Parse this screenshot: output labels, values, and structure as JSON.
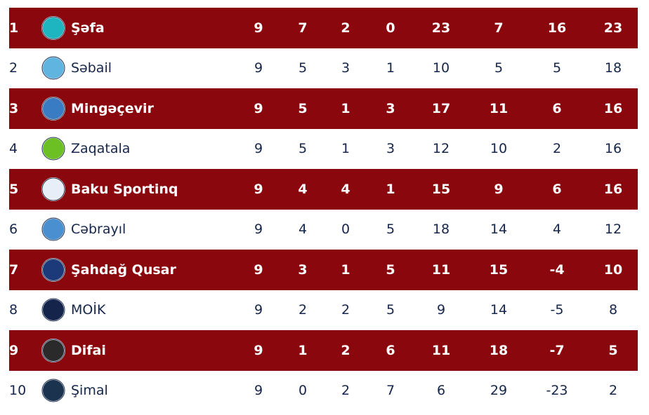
{
  "colors": {
    "highlight": "#8a080d",
    "text": "#15264a"
  },
  "rows": [
    {
      "rank": "1",
      "team": "Şəfa",
      "logo": "sefa-fk-logo",
      "logo_color": "#1fb5c0",
      "p": "9",
      "w": "7",
      "d": "2",
      "l": "0",
      "gf": "23",
      "ga": "7",
      "gd": "16",
      "pts": "23"
    },
    {
      "rank": "2",
      "team": "Səbail",
      "logo": "sebail-logo",
      "logo_color": "#5fb4e0",
      "p": "9",
      "w": "5",
      "d": "3",
      "l": "1",
      "gf": "10",
      "ga": "5",
      "gd": "5",
      "pts": "18"
    },
    {
      "rank": "3",
      "team": "Mingəçevir",
      "logo": "mingecevir-logo",
      "logo_color": "#3a7cc4",
      "p": "9",
      "w": "5",
      "d": "1",
      "l": "3",
      "gf": "17",
      "ga": "11",
      "gd": "6",
      "pts": "16"
    },
    {
      "rank": "4",
      "team": "Zaqatala",
      "logo": "zaqatala-logo",
      "logo_color": "#6cc024",
      "p": "9",
      "w": "5",
      "d": "1",
      "l": "3",
      "gf": "12",
      "ga": "10",
      "gd": "2",
      "pts": "16"
    },
    {
      "rank": "5",
      "team": "Baku Sportinq",
      "logo": "baku-sportinq-logo",
      "logo_color": "#e8eef8",
      "p": "9",
      "w": "4",
      "d": "4",
      "l": "1",
      "gf": "15",
      "ga": "9",
      "gd": "6",
      "pts": "16"
    },
    {
      "rank": "6",
      "team": "Cəbrayıl",
      "logo": "cebrayil-logo",
      "logo_color": "#4a8fd0",
      "p": "9",
      "w": "4",
      "d": "0",
      "l": "5",
      "gf": "18",
      "ga": "14",
      "gd": "4",
      "pts": "12"
    },
    {
      "rank": "7",
      "team": "Şahdağ Qusar",
      "logo": "sahdag-qusar-logo",
      "logo_color": "#1c3a7a",
      "p": "9",
      "w": "3",
      "d": "1",
      "l": "5",
      "gf": "11",
      "ga": "15",
      "gd": "-4",
      "pts": "10"
    },
    {
      "rank": "8",
      "team": "MOİK",
      "logo": "moik-ordu-logo",
      "logo_color": "#14244a",
      "p": "9",
      "w": "2",
      "d": "2",
      "l": "5",
      "gf": "9",
      "ga": "14",
      "gd": "-5",
      "pts": "8"
    },
    {
      "rank": "9",
      "team": "Difai",
      "logo": "difai-logo",
      "logo_color": "#2a2a2a",
      "p": "9",
      "w": "1",
      "d": "2",
      "l": "6",
      "gf": "11",
      "ga": "18",
      "gd": "-7",
      "pts": "5"
    },
    {
      "rank": "10",
      "team": "Şimal",
      "logo": "simal-fk-logo",
      "logo_color": "#1c3350",
      "p": "9",
      "w": "0",
      "d": "2",
      "l": "7",
      "gf": "6",
      "ga": "29",
      "gd": "-23",
      "pts": "2"
    }
  ]
}
